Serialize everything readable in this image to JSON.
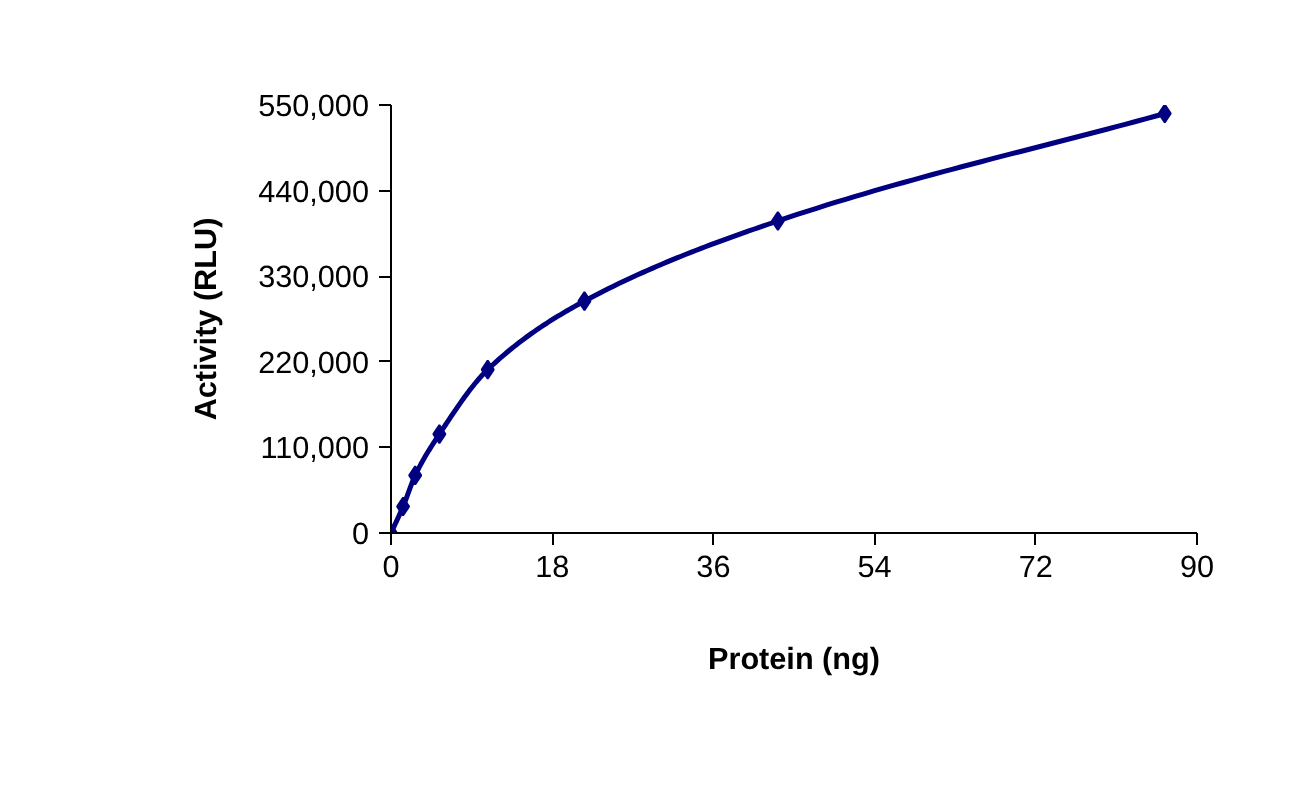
{
  "chart_data": {
    "type": "line",
    "xlabel": "Protein (ng)",
    "ylabel": "Activity (RLU)",
    "x": [
      0,
      1.35,
      2.7,
      5.4,
      10.8,
      21.6,
      43.2,
      86.4
    ],
    "series": [
      {
        "color": "#000080",
        "values": [
          0,
          34000,
          74000,
          127000,
          210000,
          298000,
          401000,
          539000
        ]
      }
    ],
    "xlim": [
      0,
      90
    ],
    "xticks": [
      0,
      18,
      36,
      54,
      72,
      90
    ],
    "ylim": [
      0,
      550000
    ],
    "yticks": [
      {
        "value": 0,
        "label": "0"
      },
      {
        "value": 110000,
        "label": "110,000"
      },
      {
        "value": 220000,
        "label": "220,000"
      },
      {
        "value": 330000,
        "label": "330,000"
      },
      {
        "value": 440000,
        "label": "440,000"
      },
      {
        "value": 550000,
        "label": "550,000"
      }
    ],
    "marker": "diamond",
    "line_style": "solid",
    "grid": false
  }
}
